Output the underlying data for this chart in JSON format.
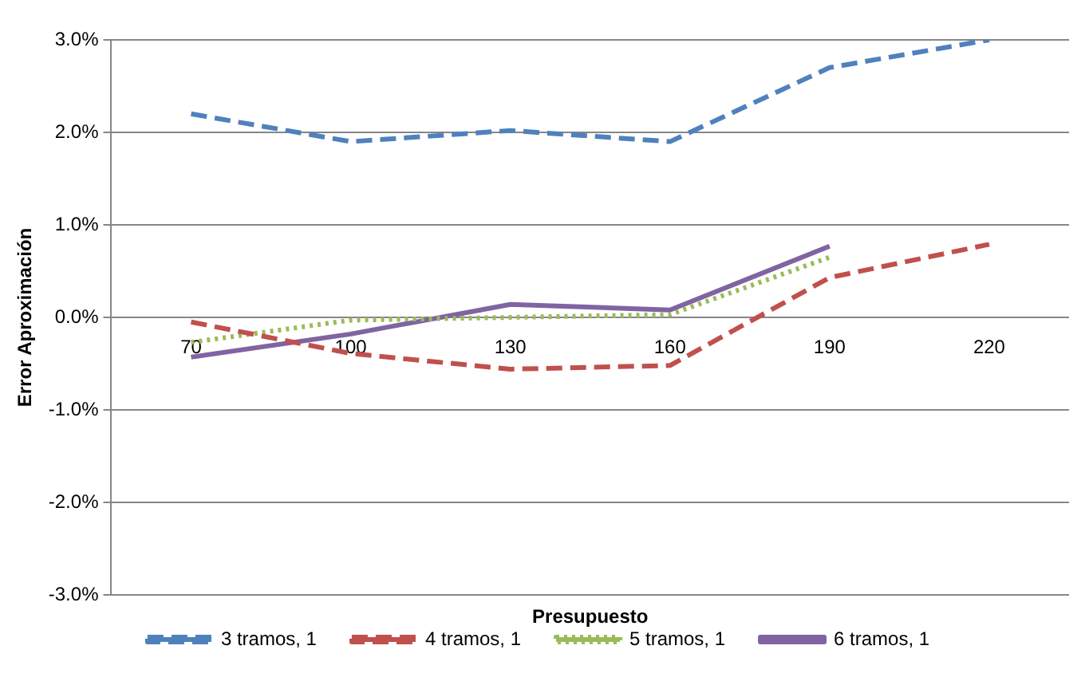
{
  "chart_data": {
    "type": "line",
    "xlabel": "Presupuesto",
    "ylabel": "Error Aproximación",
    "categories": [
      "70",
      "100",
      "130",
      "160",
      "190",
      "220"
    ],
    "series": [
      {
        "name": "3 tramos, 1",
        "color": "#4f81bd",
        "line_style": "dashed",
        "values": [
          2.2,
          1.9,
          2.02,
          1.9,
          2.7,
          3.0
        ]
      },
      {
        "name": "4 tramos, 1",
        "color": "#c0504d",
        "line_style": "dashed",
        "values": [
          -0.05,
          -0.39,
          -0.56,
          -0.52,
          0.43,
          0.79
        ]
      },
      {
        "name": "5 tramos, 1",
        "color": "#9bbb59",
        "line_style": "dotted",
        "values": [
          -0.27,
          -0.03,
          0.0,
          0.03,
          0.65,
          null
        ]
      },
      {
        "name": "6 tramos, 1",
        "color": "#8064a2",
        "line_style": "solid",
        "values": [
          -0.43,
          -0.18,
          0.14,
          0.08,
          0.77,
          null
        ]
      }
    ],
    "ylim": [
      -3,
      3
    ],
    "yticks": [
      {
        "value": -3,
        "label": "-3.0%"
      },
      {
        "value": -2,
        "label": "-2.0%"
      },
      {
        "value": -1,
        "label": "-1.0%"
      },
      {
        "value": 0,
        "label": "0.0%"
      },
      {
        "value": 1,
        "label": "1.0%"
      },
      {
        "value": 2,
        "label": "2.0%"
      },
      {
        "value": 3,
        "label": "3.0%"
      }
    ],
    "grid": "y",
    "legend": "bottom",
    "marker": "none"
  }
}
